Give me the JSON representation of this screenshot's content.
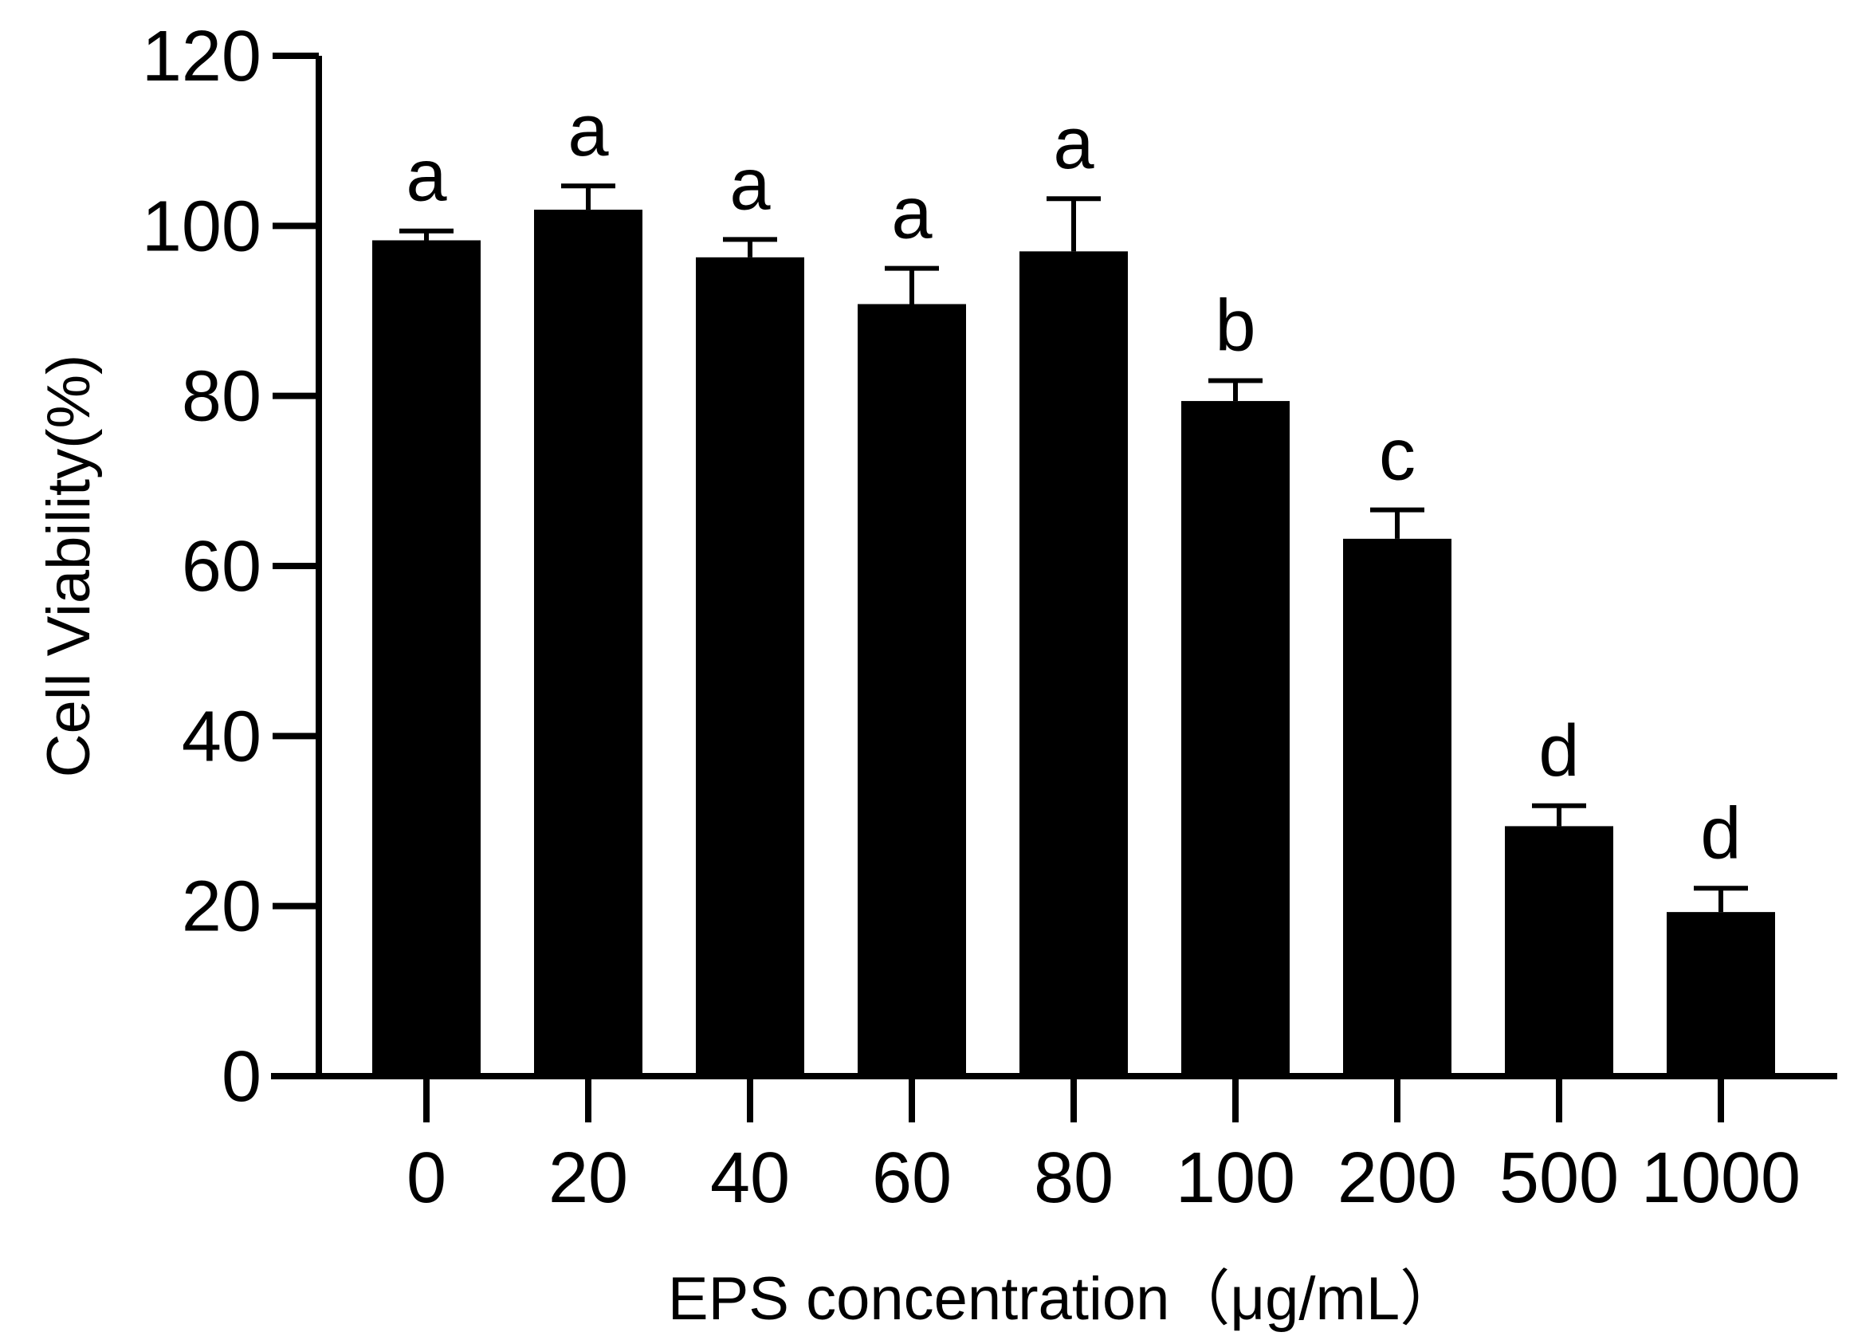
{
  "chart_data": {
    "type": "bar",
    "title": "",
    "xlabel": "EPS concentration（μg/mL）",
    "ylabel": "Cell Viability(%)",
    "ylim": [
      0,
      120
    ],
    "yticks": [
      "0",
      "20",
      "40",
      "60",
      "80",
      "100",
      "120"
    ],
    "categories": [
      "0",
      "20",
      "40",
      "60",
      "80",
      "100",
      "200",
      "500",
      "1000"
    ],
    "series": [
      {
        "values": [
          98.3,
          101.9,
          96.3,
          90.8,
          97.0,
          79.4,
          63.2,
          29.4,
          19.3
        ],
        "errors": [
          1.1,
          2.8,
          2.1,
          4.2,
          6.2,
          2.4,
          3.4,
          2.4,
          2.8
        ],
        "labels": [
          "a",
          "a",
          "a",
          "a",
          "a",
          "b",
          "c",
          "d",
          "d"
        ],
        "color": "#000000"
      }
    ],
    "grid": false,
    "legend": "none"
  }
}
